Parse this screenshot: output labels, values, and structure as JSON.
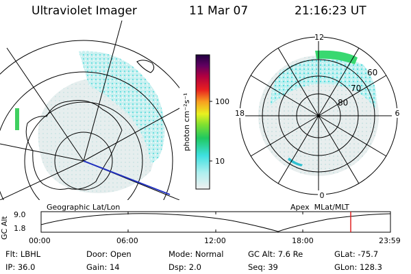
{
  "header": {
    "instrument": "Ultraviolet Imager",
    "date": "11 Mar 07",
    "time": "21:16:23 UT"
  },
  "colorbar": {
    "unit_label": "photon cm⁻²s⁻¹",
    "ticks": [
      "100",
      "10"
    ],
    "colors": [
      "#f0f0f0",
      "#b0f0f0",
      "#3ee0e0",
      "#20c860",
      "#80e030",
      "#e8f020",
      "#f8a020",
      "#e82020",
      "#b00040",
      "#600060",
      "#200040"
    ]
  },
  "geo_panel": {
    "label": "Geographic Lat/Lon"
  },
  "apex_panel": {
    "label": "Apex  MLat/MLT",
    "mlt_labels": {
      "top": "12",
      "left": "18",
      "right": "6",
      "bottom": "0"
    },
    "lat_labels": [
      "60",
      "70",
      "80"
    ]
  },
  "altitude_plot": {
    "ylabel": "GC Alt",
    "yticks": [
      "9.0",
      "1.8"
    ],
    "xticks": [
      "00:00",
      "06:00",
      "12:00",
      "18:00",
      "23:59"
    ],
    "current_time_marker": "21:16",
    "marker_color": "#e02020"
  },
  "status": {
    "row1": [
      {
        "label": "Flt:",
        "value": "LBHL"
      },
      {
        "label": "Door:",
        "value": "Open"
      },
      {
        "label": "Mode:",
        "value": "Normal"
      },
      {
        "label": "GC Alt:",
        "value": "7.6 Re"
      },
      {
        "label": "GLat:",
        "value": "-75.7"
      }
    ],
    "row2": [
      {
        "label": "IP:",
        "value": "36.0"
      },
      {
        "label": "Gain:",
        "value": "14"
      },
      {
        "label": "Dsp:",
        "value": "2.0"
      },
      {
        "label": "Seq:",
        "value": "39"
      },
      {
        "label": "GLon:",
        "value": "128.3"
      }
    ]
  }
}
